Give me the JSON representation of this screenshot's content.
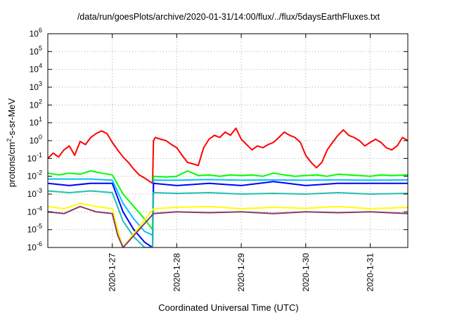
{
  "chart_data": {
    "type": "line",
    "title": "/data/run/goesPlots/archive/2020-01-31/14:00/flux/../flux/5daysEarthFluxes.txt",
    "xlabel": "Coordinated Universal Time (UTC)",
    "ylabel": "protons/cm²-s-sr-MeV",
    "ylabel_parts": {
      "a": "protons/cm",
      "sup": "2",
      "b": "-s-sr-MeV"
    },
    "y_scale": "log",
    "ylim": [
      1e-06,
      1000000.0
    ],
    "y_ticks": [
      {
        "value": 1e-06,
        "base": "10",
        "exp": "-6"
      },
      {
        "value": 1e-05,
        "base": "10",
        "exp": "-5"
      },
      {
        "value": 0.0001,
        "base": "10",
        "exp": "-4"
      },
      {
        "value": 0.001,
        "base": "10",
        "exp": "-3"
      },
      {
        "value": 0.01,
        "base": "10",
        "exp": "-2"
      },
      {
        "value": 0.1,
        "base": "10",
        "exp": "-1"
      },
      {
        "value": 1.0,
        "base": "10",
        "exp": "0"
      },
      {
        "value": 10.0,
        "base": "10",
        "exp": "1"
      },
      {
        "value": 100.0,
        "base": "10",
        "exp": "2"
      },
      {
        "value": 1000.0,
        "base": "10",
        "exp": "3"
      },
      {
        "value": 10000.0,
        "base": "10",
        "exp": "4"
      },
      {
        "value": 100000.0,
        "base": "10",
        "exp": "5"
      },
      {
        "value": 1000000.0,
        "base": "10",
        "exp": "6"
      }
    ],
    "xlim": [
      "2020-01-26 00:00",
      "2020-01-31 14:00"
    ],
    "x_ticks": [
      "2020-1-27",
      "2020-1-28",
      "2020-1-29",
      "2020-1-30",
      "2020-1-31"
    ],
    "grid": true,
    "legend": "none",
    "series": [
      {
        "color": "#ff0000",
        "x": [
          "2020-01-26 00:00",
          "2020-01-26 02:00",
          "2020-01-26 04:00",
          "2020-01-26 06:00",
          "2020-01-26 08:00",
          "2020-01-26 10:00",
          "2020-01-26 12:00",
          "2020-01-26 14:00",
          "2020-01-26 16:00",
          "2020-01-26 18:00",
          "2020-01-26 20:00",
          "2020-01-26 22:00",
          "2020-01-27 00:00",
          "2020-01-27 02:00",
          "2020-01-27 04:00",
          "2020-01-27 06:00",
          "2020-01-27 08:00",
          "2020-01-27 10:00",
          "2020-01-27 12:00",
          "2020-01-27 14:00",
          "2020-01-27 15:00",
          "2020-01-27 15:20",
          "2020-01-27 16:00",
          "2020-01-27 18:00",
          "2020-01-27 20:00",
          "2020-01-27 22:00",
          "2020-01-28 00:00",
          "2020-01-28 02:00",
          "2020-01-28 04:00",
          "2020-01-28 06:00",
          "2020-01-28 08:00",
          "2020-01-28 10:00",
          "2020-01-28 12:00",
          "2020-01-28 14:00",
          "2020-01-28 16:00",
          "2020-01-28 18:00",
          "2020-01-28 20:00",
          "2020-01-28 22:00",
          "2020-01-29 00:00",
          "2020-01-29 02:00",
          "2020-01-29 04:00",
          "2020-01-29 06:00",
          "2020-01-29 08:00",
          "2020-01-29 10:00",
          "2020-01-29 12:00",
          "2020-01-29 14:00",
          "2020-01-29 16:00",
          "2020-01-29 18:00",
          "2020-01-29 20:00",
          "2020-01-29 22:00",
          "2020-01-30 00:00",
          "2020-01-30 02:00",
          "2020-01-30 04:00",
          "2020-01-30 06:00",
          "2020-01-30 08:00",
          "2020-01-30 10:00",
          "2020-01-30 12:00",
          "2020-01-30 14:00",
          "2020-01-30 16:00",
          "2020-01-30 18:00",
          "2020-01-30 20:00",
          "2020-01-30 22:00",
          "2020-01-31 00:00",
          "2020-01-31 02:00",
          "2020-01-31 04:00",
          "2020-01-31 06:00",
          "2020-01-31 08:00",
          "2020-01-31 10:00",
          "2020-01-31 12:00",
          "2020-01-31 14:00"
        ],
        "values": [
          0.1,
          0.2,
          0.12,
          0.3,
          0.5,
          0.15,
          0.9,
          0.6,
          1.5,
          2.5,
          3.5,
          2.5,
          0.8,
          0.3,
          0.12,
          0.06,
          0.025,
          0.012,
          0.008,
          0.005,
          0.004,
          1.0,
          1.5,
          1.2,
          1.0,
          0.6,
          0.4,
          0.15,
          0.06,
          0.05,
          0.04,
          0.4,
          1.2,
          2.0,
          1.5,
          3.0,
          2.0,
          5.0,
          1.2,
          0.6,
          0.3,
          0.5,
          0.4,
          0.6,
          0.8,
          1.5,
          3.0,
          2.0,
          1.5,
          0.8,
          0.15,
          0.06,
          0.03,
          0.06,
          0.3,
          0.8,
          2.0,
          4.0,
          2.0,
          1.5,
          1.0,
          0.5,
          0.8,
          1.2,
          0.8,
          0.4,
          0.3,
          0.5,
          1.5,
          1.0
        ]
      },
      {
        "color": "#00ff00",
        "x": [
          "2020-01-26 00:00",
          "2020-01-26 04:00",
          "2020-01-26 08:00",
          "2020-01-26 12:00",
          "2020-01-26 16:00",
          "2020-01-26 20:00",
          "2020-01-27 00:00",
          "2020-01-27 04:00",
          "2020-01-27 08:00",
          "2020-01-27 12:00",
          "2020-01-27 15:00",
          "2020-01-27 15:20",
          "2020-01-27 20:00",
          "2020-01-28 00:00",
          "2020-01-28 04:00",
          "2020-01-28 08:00",
          "2020-01-28 12:00",
          "2020-01-28 16:00",
          "2020-01-28 20:00",
          "2020-01-29 00:00",
          "2020-01-29 04:00",
          "2020-01-29 08:00",
          "2020-01-29 12:00",
          "2020-01-29 16:00",
          "2020-01-29 20:00",
          "2020-01-30 00:00",
          "2020-01-30 04:00",
          "2020-01-30 08:00",
          "2020-01-30 12:00",
          "2020-01-30 16:00",
          "2020-01-30 20:00",
          "2020-01-31 00:00",
          "2020-01-31 04:00",
          "2020-01-31 08:00",
          "2020-01-31 14:00"
        ],
        "values": [
          0.015,
          0.012,
          0.015,
          0.013,
          0.02,
          0.015,
          0.012,
          0.001,
          0.0002,
          4e-05,
          1e-05,
          0.01,
          0.009,
          0.01,
          0.02,
          0.011,
          0.012,
          0.01,
          0.012,
          0.011,
          0.012,
          0.01,
          0.015,
          0.012,
          0.01,
          0.011,
          0.012,
          0.01,
          0.013,
          0.012,
          0.011,
          0.01,
          0.012,
          0.011,
          0.012
        ]
      },
      {
        "color": "#00c0ff",
        "x": [
          "2020-01-26 00:00",
          "2020-01-26 08:00",
          "2020-01-26 16:00",
          "2020-01-27 00:00",
          "2020-01-27 04:00",
          "2020-01-27 08:00",
          "2020-01-27 12:00",
          "2020-01-27 15:00",
          "2020-01-27 15:20",
          "2020-01-28 00:00",
          "2020-01-28 12:00",
          "2020-01-29 00:00",
          "2020-01-29 12:00",
          "2020-01-30 00:00",
          "2020-01-30 12:00",
          "2020-01-31 00:00",
          "2020-01-31 14:00"
        ],
        "values": [
          0.007,
          0.007,
          0.007,
          0.006,
          0.0003,
          4e-05,
          8e-06,
          5e-06,
          0.006,
          0.006,
          0.0065,
          0.006,
          0.0062,
          0.006,
          0.0063,
          0.006,
          0.0062
        ]
      },
      {
        "color": "#0000ff",
        "x": [
          "2020-01-26 00:00",
          "2020-01-26 08:00",
          "2020-01-26 16:00",
          "2020-01-27 00:00",
          "2020-01-27 04:00",
          "2020-01-27 08:00",
          "2020-01-27 12:00",
          "2020-01-27 15:00",
          "2020-01-27 15:20",
          "2020-01-28 00:00",
          "2020-01-28 12:00",
          "2020-01-29 00:00",
          "2020-01-29 12:00",
          "2020-01-30 00:00",
          "2020-01-30 12:00",
          "2020-01-31 00:00",
          "2020-01-31 14:00"
        ],
        "values": [
          0.004,
          0.003,
          0.004,
          0.004,
          0.0001,
          1e-05,
          2e-06,
          1e-06,
          0.004,
          0.003,
          0.004,
          0.003,
          0.005,
          0.003,
          0.004,
          0.004,
          0.004
        ]
      },
      {
        "color": "#20c0b0",
        "x": [
          "2020-01-26 00:00",
          "2020-01-26 08:00",
          "2020-01-26 16:00",
          "2020-01-27 00:00",
          "2020-01-27 04:00",
          "2020-01-27 08:00",
          "2020-01-27 12:00",
          "2020-01-27 15:00",
          "2020-01-27 15:20",
          "2020-01-28 00:00",
          "2020-01-28 12:00",
          "2020-01-29 00:00",
          "2020-01-29 12:00",
          "2020-01-30 00:00",
          "2020-01-30 12:00",
          "2020-01-31 00:00",
          "2020-01-31 14:00"
        ],
        "values": [
          0.0015,
          0.0012,
          0.0015,
          0.0012,
          3e-05,
          4e-06,
          1e-06,
          1e-06,
          0.0012,
          0.0011,
          0.0012,
          0.001,
          0.0011,
          0.001,
          0.0012,
          0.001,
          0.0011
        ]
      },
      {
        "color": "#ffff00",
        "x": [
          "2020-01-26 00:00",
          "2020-01-26 06:00",
          "2020-01-26 12:00",
          "2020-01-26 18:00",
          "2020-01-27 00:00",
          "2020-01-27 02:00",
          "2020-01-27 04:00",
          "2020-01-27 15:20",
          "2020-01-28 00:00",
          "2020-01-28 12:00",
          "2020-01-29 00:00",
          "2020-01-29 12:00",
          "2020-01-30 00:00",
          "2020-01-30 12:00",
          "2020-01-31 00:00",
          "2020-01-31 14:00"
        ],
        "values": [
          0.0002,
          0.00015,
          0.0003,
          0.0002,
          0.00015,
          1e-05,
          1e-06,
          0.00015,
          0.00018,
          0.0002,
          0.00015,
          0.00018,
          0.00016,
          0.0002,
          0.00015,
          0.00018
        ]
      },
      {
        "color": "#8b3a62",
        "x": [
          "2020-01-26 00:00",
          "2020-01-26 06:00",
          "2020-01-26 12:00",
          "2020-01-26 18:00",
          "2020-01-27 00:00",
          "2020-01-27 02:00",
          "2020-01-27 04:00",
          "2020-01-27 15:20",
          "2020-01-28 00:00",
          "2020-01-28 12:00",
          "2020-01-29 00:00",
          "2020-01-29 12:00",
          "2020-01-30 00:00",
          "2020-01-30 12:00",
          "2020-01-31 00:00",
          "2020-01-31 14:00"
        ],
        "values": [
          0.0001,
          8e-05,
          0.0002,
          0.0001,
          8e-05,
          5e-06,
          1e-06,
          8e-05,
          0.0001,
          9e-05,
          0.0001,
          8e-05,
          0.0001,
          9e-05,
          0.0001,
          8e-05
        ]
      }
    ]
  }
}
